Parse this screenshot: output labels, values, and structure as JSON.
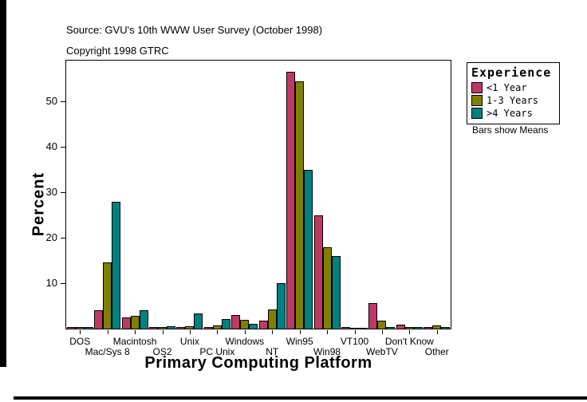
{
  "header": {
    "source": "Source: GVU's 10th WWW User Survey (October 1998)",
    "copyright": "Copyright 1998 GTRC"
  },
  "legend": {
    "title": "Experience",
    "items": [
      {
        "label": "<1 Year",
        "color": "#BE3A64"
      },
      {
        "label": "1-3 Years",
        "color": "#808000"
      },
      {
        "label": ">4 Years",
        "color": "#008080"
      }
    ],
    "note": "Bars show Means"
  },
  "chart_data": {
    "type": "bar",
    "title": "",
    "xlabel": "Primary Computing Platform",
    "ylabel": "Percent",
    "categories": [
      "DOS",
      "Mac/Sys 8",
      "Macintosh",
      "OS2",
      "Unix",
      "PC Unix",
      "Windows",
      "NT",
      "Win95",
      "Win98",
      "VT100",
      "WebTV",
      "Don't Know",
      "Other"
    ],
    "series": [
      {
        "name": "<1 Year",
        "color": "#BE3A64",
        "values": [
          0.3,
          4.0,
          2.5,
          0.3,
          0.4,
          0.3,
          3.0,
          1.8,
          56.5,
          25.0,
          0.3,
          5.7,
          0.9,
          0.4
        ]
      },
      {
        "name": "1-3 Years",
        "color": "#808000",
        "values": [
          0.3,
          14.5,
          2.8,
          0.3,
          0.6,
          0.7,
          2.0,
          4.2,
          54.5,
          18.0,
          0.2,
          1.8,
          0.3,
          0.7
        ]
      },
      {
        "name": ">4 Years",
        "color": "#008080",
        "values": [
          0.4,
          28.0,
          4.0,
          0.5,
          3.3,
          2.1,
          1.0,
          10.0,
          35.0,
          16.0,
          0.2,
          0.3,
          0.3,
          0.3
        ]
      }
    ],
    "yticks": [
      10,
      20,
      30,
      40,
      50
    ],
    "ylim": [
      0,
      59
    ],
    "grid": false,
    "legend_position": "right",
    "annotation": "Bars show Means"
  }
}
